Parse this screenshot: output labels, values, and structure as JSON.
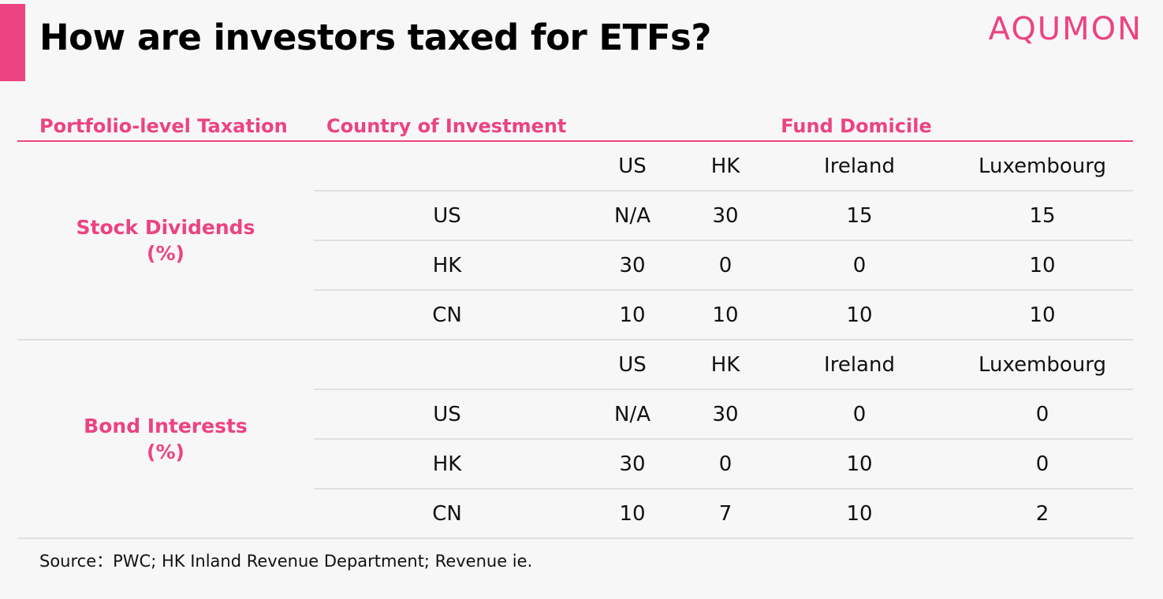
{
  "title": "How are investors taxed for ETFs?",
  "brand": "AQUMON",
  "colors": {
    "accent": "#ec4382",
    "text": "#111111",
    "background": "#f7f7f7",
    "rule": "#e0e0e0"
  },
  "headers": {
    "portfolio": "Portfolio-level Taxation",
    "country": "Country of Investment",
    "domicile": "Fund Domicile"
  },
  "sections": [
    {
      "label_line1": "Stock Dividends",
      "label_line2": "(%)",
      "columns": [
        "US",
        "HK",
        "Ireland",
        "Luxembourg"
      ],
      "rows": [
        {
          "country": "US",
          "values": [
            "N/A",
            "30",
            "15",
            "15"
          ]
        },
        {
          "country": "HK",
          "values": [
            "30",
            "0",
            "0",
            "10"
          ]
        },
        {
          "country": "CN",
          "values": [
            "10",
            "10",
            "10",
            "10"
          ]
        }
      ]
    },
    {
      "label_line1": "Bond Interests",
      "label_line2": "(%)",
      "columns": [
        "US",
        "HK",
        "Ireland",
        "Luxembourg"
      ],
      "rows": [
        {
          "country": "US",
          "values": [
            "N/A",
            "30",
            "0",
            "0"
          ]
        },
        {
          "country": "HK",
          "values": [
            "30",
            "0",
            "10",
            "0"
          ]
        },
        {
          "country": "CN",
          "values": [
            "10",
            "7",
            "10",
            "2"
          ]
        }
      ]
    }
  ],
  "source": "Source：PWC; HK Inland Revenue Department; Revenue ie."
}
